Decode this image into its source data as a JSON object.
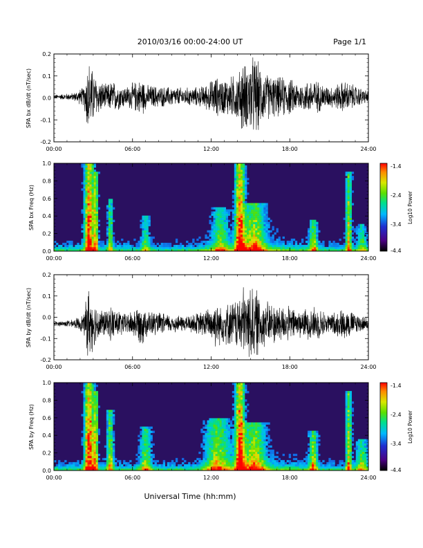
{
  "header": {
    "title": "2010/03/16  00:00-24:00 UT",
    "page": "Page 1/1"
  },
  "xaxis_label": "Universal Time (hh:mm)",
  "colors": {
    "trace": "#000000",
    "spectrogram_background": "#2a1060",
    "colormap": [
      "#000000",
      "#4b0082",
      "#1f2fd0",
      "#00b8ff",
      "#00e08a",
      "#5be000",
      "#d8e800",
      "#ff8c00",
      "#ff0000"
    ]
  },
  "chart_data": [
    {
      "type": "line",
      "title": "",
      "ylabel": "SPA bx dB/dt (nT/sec)",
      "xlabel": "",
      "xlim": [
        0,
        24
      ],
      "ylim": [
        -0.2,
        0.2
      ],
      "xticks": [
        "00:00",
        "06:00",
        "12:00",
        "18:00",
        "24:00"
      ],
      "yticks": [
        "-0.2",
        "-0.1",
        "0.0",
        "0.1",
        "0.2"
      ],
      "baseline": 0.005,
      "envelope": {
        "x": [
          0,
          1.5,
          2.3,
          2.6,
          2.8,
          3.2,
          4.0,
          4.4,
          5.5,
          6.0,
          6.8,
          7.0,
          8.5,
          10.0,
          11.2,
          11.8,
          12.3,
          12.8,
          13.5,
          14.2,
          14.4,
          14.7,
          15.0,
          15.4,
          16.0,
          17.0,
          17.8,
          18.3,
          19.0,
          19.8,
          21.0,
          22.2,
          23.2,
          24.0
        ],
        "amplitude": [
          0.01,
          0.02,
          0.05,
          0.2,
          0.16,
          0.1,
          0.06,
          0.08,
          0.05,
          0.07,
          0.09,
          0.06,
          0.05,
          0.045,
          0.05,
          0.07,
          0.1,
          0.09,
          0.1,
          0.13,
          0.2,
          0.15,
          0.2,
          0.2,
          0.12,
          0.1,
          0.1,
          0.08,
          0.07,
          0.09,
          0.05,
          0.08,
          0.05,
          0.03
        ]
      }
    },
    {
      "type": "heatmap",
      "title": "",
      "ylabel": "SPA bx Freq (Hz)",
      "xlabel": "",
      "xlim": [
        0,
        24
      ],
      "ylim": [
        0.0,
        1.0
      ],
      "xticks": [
        "00:00",
        "06:00",
        "12:00",
        "18:00",
        "24:00"
      ],
      "yticks": [
        "0.0",
        "0.2",
        "0.4",
        "0.6",
        "0.8",
        "1.0"
      ],
      "colorbar": {
        "label": "Log10 Power",
        "range": [
          -4.4,
          -1.4
        ],
        "ticks": [
          "-1.4",
          "-2.4",
          "-3.4",
          "-4.4"
        ]
      },
      "events": [
        {
          "t": 2.7,
          "width": 0.35,
          "strength": 0.85,
          "fmax": 1.0
        },
        {
          "t": 3.2,
          "width": 0.15,
          "strength": 0.6,
          "fmax": 0.9
        },
        {
          "t": 4.3,
          "width": 0.2,
          "strength": 0.45,
          "fmax": 0.6
        },
        {
          "t": 7.0,
          "width": 0.3,
          "strength": 0.35,
          "fmax": 0.4
        },
        {
          "t": 12.7,
          "width": 0.6,
          "strength": 0.4,
          "fmax": 0.5
        },
        {
          "t": 14.2,
          "width": 0.35,
          "strength": 0.85,
          "fmax": 1.0
        },
        {
          "t": 15.3,
          "width": 0.8,
          "strength": 0.55,
          "fmax": 0.55
        },
        {
          "t": 19.8,
          "width": 0.3,
          "strength": 0.5,
          "fmax": 0.35
        },
        {
          "t": 22.5,
          "width": 0.2,
          "strength": 0.6,
          "fmax": 0.9
        },
        {
          "t": 23.5,
          "width": 0.35,
          "strength": 0.35,
          "fmax": 0.3
        }
      ]
    },
    {
      "type": "line",
      "title": "",
      "ylabel": "SPA by dB/dt (nT/sec)",
      "xlabel": "",
      "xlim": [
        0,
        24
      ],
      "ylim": [
        -0.2,
        0.2
      ],
      "xticks": [
        "00:00",
        "06:00",
        "12:00",
        "18:00",
        "24:00"
      ],
      "yticks": [
        "-0.2",
        "-0.1",
        "0.0",
        "0.1",
        "0.2"
      ],
      "baseline": -0.03,
      "envelope": {
        "x": [
          0,
          1.5,
          2.3,
          2.6,
          2.8,
          3.2,
          4.0,
          4.4,
          5.5,
          6.0,
          6.8,
          7.0,
          8.5,
          10.0,
          11.2,
          11.8,
          12.3,
          12.8,
          13.5,
          14.2,
          14.4,
          14.7,
          15.0,
          15.4,
          16.0,
          17.0,
          17.8,
          18.3,
          19.0,
          19.8,
          21.0,
          22.2,
          23.2,
          24.0
        ],
        "amplitude": [
          0.01,
          0.02,
          0.05,
          0.2,
          0.16,
          0.1,
          0.06,
          0.09,
          0.05,
          0.07,
          0.11,
          0.07,
          0.05,
          0.04,
          0.06,
          0.08,
          0.12,
          0.1,
          0.11,
          0.14,
          0.2,
          0.16,
          0.2,
          0.18,
          0.12,
          0.1,
          0.09,
          0.08,
          0.07,
          0.09,
          0.05,
          0.08,
          0.05,
          0.03
        ]
      }
    },
    {
      "type": "heatmap",
      "title": "",
      "ylabel": "SPA by Freq (Hz)",
      "xlabel": "",
      "xlim": [
        0,
        24
      ],
      "ylim": [
        0.0,
        1.0
      ],
      "xticks": [
        "00:00",
        "06:00",
        "12:00",
        "18:00",
        "24:00"
      ],
      "yticks": [
        "0.0",
        "0.2",
        "0.4",
        "0.6",
        "0.8",
        "1.0"
      ],
      "colorbar": {
        "label": "Log10 Power",
        "range": [
          -4.4,
          -1.4
        ],
        "ticks": [
          "-1.4",
          "-2.4",
          "-3.4",
          "-4.4"
        ]
      },
      "events": [
        {
          "t": 2.7,
          "width": 0.35,
          "strength": 0.9,
          "fmax": 1.0
        },
        {
          "t": 3.2,
          "width": 0.15,
          "strength": 0.6,
          "fmax": 0.9
        },
        {
          "t": 4.3,
          "width": 0.25,
          "strength": 0.5,
          "fmax": 0.7
        },
        {
          "t": 7.0,
          "width": 0.4,
          "strength": 0.45,
          "fmax": 0.5
        },
        {
          "t": 12.5,
          "width": 0.9,
          "strength": 0.5,
          "fmax": 0.6
        },
        {
          "t": 14.2,
          "width": 0.35,
          "strength": 0.85,
          "fmax": 1.0
        },
        {
          "t": 15.3,
          "width": 0.8,
          "strength": 0.55,
          "fmax": 0.55
        },
        {
          "t": 19.8,
          "width": 0.3,
          "strength": 0.55,
          "fmax": 0.45
        },
        {
          "t": 22.5,
          "width": 0.2,
          "strength": 0.6,
          "fmax": 0.9
        },
        {
          "t": 23.5,
          "width": 0.4,
          "strength": 0.45,
          "fmax": 0.35
        }
      ]
    }
  ]
}
